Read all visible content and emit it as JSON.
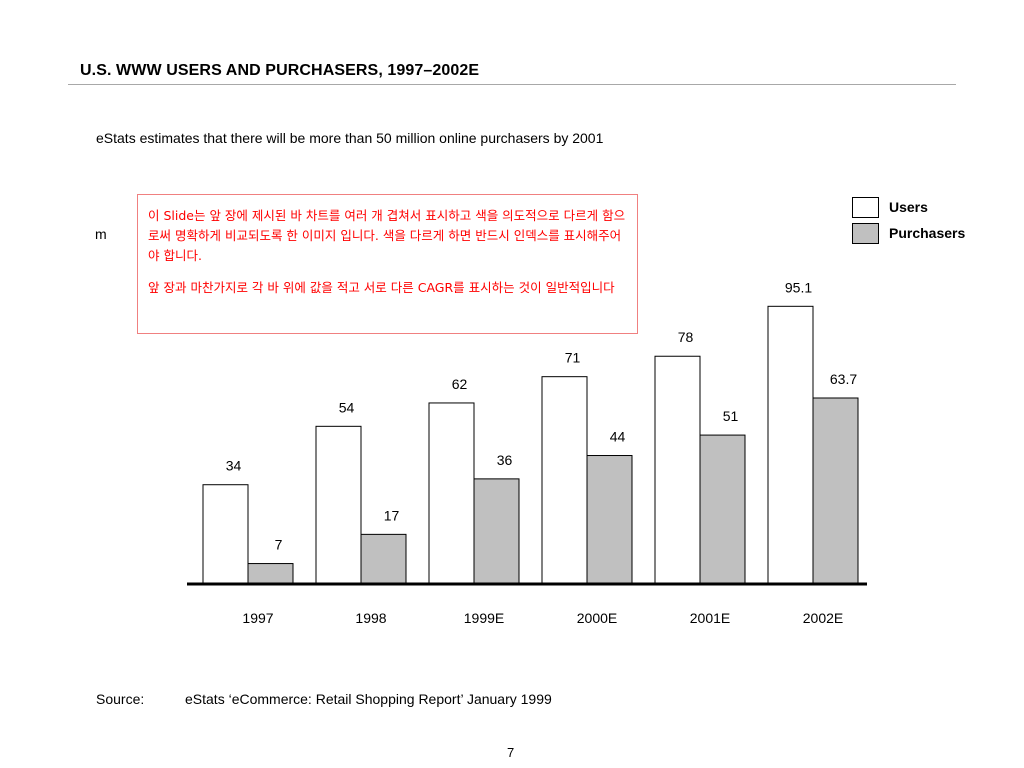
{
  "slide": {
    "title": "U.S. WWW USERS AND PURCHASERS, 1997–2002E",
    "subtitle": "eStats estimates that there will be more than 50 million online purchasers by 2001",
    "stray_text": "m",
    "note": {
      "paragraph1": "이 Slide는 앞 장에 제시된 바 차트를 여러 개 겹쳐서 표시하고 색을 의도적으로 다르게 함으로써 명확하게 비교되도록 한 이미지 입니다. 색을 다르게 하면 반드시 인덱스를 표시해주어야 합니다.",
      "paragraph2": "앞 장과 마찬가지로 각 바 위에 값을 적고 서로 다른 CAGR를 표시하는 것이 일반적입니다"
    },
    "source_label": "Source:",
    "source_text": "eStats ‘eCommerce: Retail Shopping Report’ January 1999",
    "page_number": "7"
  },
  "chart_data": {
    "type": "bar",
    "categories": [
      "1997",
      "1998",
      "1999E",
      "2000E",
      "2001E",
      "2002E"
    ],
    "series": [
      {
        "name": "Users",
        "values": [
          34,
          54,
          62,
          71,
          78,
          95.1
        ],
        "labels": [
          "34",
          "54",
          "62",
          "71",
          "78",
          "95.1"
        ],
        "color": "#ffffff"
      },
      {
        "name": "Purchasers",
        "values": [
          7,
          17,
          36,
          44,
          51,
          63.7
        ],
        "labels": [
          "7",
          "17",
          "36",
          "44",
          "51",
          "63.7"
        ],
        "color": "#c0c0c0"
      }
    ],
    "ylim": [
      0,
      100
    ],
    "grid": false,
    "legend": "top-right",
    "xlabel": "",
    "ylabel": ""
  }
}
